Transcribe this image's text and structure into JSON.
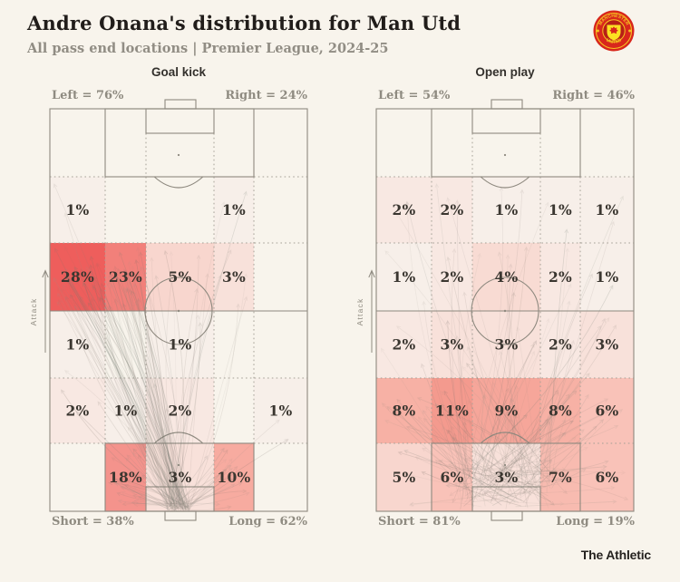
{
  "header": {
    "title": "Andre Onana's distribution for Man Utd",
    "subtitle": "All pass end locations | Premier League, 2024-25",
    "logo": {
      "name": "manchester-united-crest",
      "text_top": "MANCHESTER",
      "text_bottom": "UNITED"
    }
  },
  "footer": {
    "brand": "The Athletic"
  },
  "colors": {
    "background": "#f8f4ec",
    "pitch_line": "#8e897f",
    "grid_dot": "#a5a096",
    "pct_text": "#3a3630",
    "label_text": "#8f8b81",
    "title_text": "#211d1a",
    "crest_red": "#d8271c",
    "crest_gold": "#f7c421",
    "heat": {
      "1": "#f7efe9",
      "2": "#f8e8e2",
      "3": "#f8e1da",
      "4": "#f8dbd3",
      "5": "#f8d6ce",
      "6": "#f9c2b8",
      "7": "#f8bbb0",
      "8": "#f7b1a5",
      "9": "#f6a69a",
      "10": "#f7aba0",
      "11": "#f49a8e",
      "18": "#f4938c",
      "23": "#f2807a",
      "28": "#ee5e5c"
    }
  },
  "chart_data": [
    {
      "type": "heatmap",
      "title": "Goal kick",
      "unit": "%",
      "attack_label": "Attack",
      "top_labels": {
        "left": "Left = 76%",
        "right": "Right = 24%"
      },
      "bottom_labels": {
        "left": "Short = 38%",
        "right": "Long = 62%"
      },
      "zone_values_pct": [
        [
          null,
          null,
          null,
          null,
          null
        ],
        [
          1,
          null,
          null,
          1,
          null
        ],
        [
          28,
          23,
          5,
          3,
          null
        ],
        [
          1,
          null,
          1,
          null,
          null
        ],
        [
          2,
          1,
          2,
          null,
          1
        ],
        [
          null,
          18,
          3,
          10,
          null
        ]
      ]
    },
    {
      "type": "heatmap",
      "title": "Open play",
      "unit": "%",
      "attack_label": "Attack",
      "top_labels": {
        "left": "Left = 54%",
        "right": "Right = 46%"
      },
      "bottom_labels": {
        "left": "Short = 81%",
        "right": "Long = 19%"
      },
      "zone_values_pct": [
        [
          null,
          null,
          null,
          null,
          null
        ],
        [
          2,
          2,
          1,
          1,
          1
        ],
        [
          1,
          2,
          4,
          2,
          1
        ],
        [
          2,
          3,
          3,
          2,
          3
        ],
        [
          8,
          11,
          9,
          8,
          6
        ],
        [
          5,
          6,
          3,
          7,
          6
        ]
      ]
    }
  ]
}
